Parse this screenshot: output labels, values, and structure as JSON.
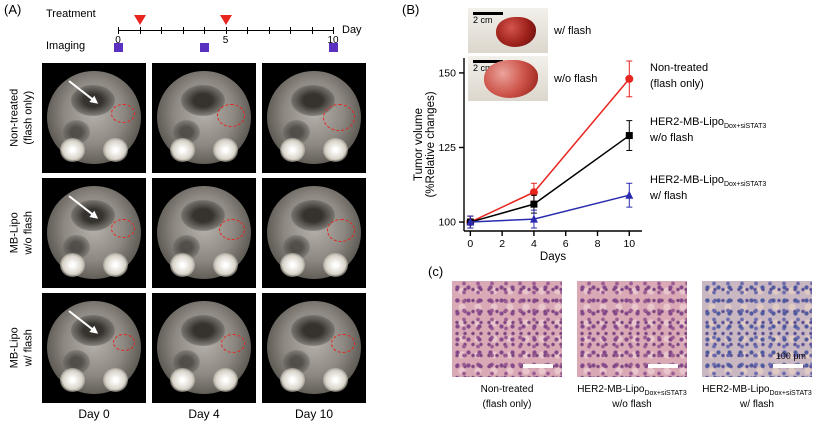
{
  "figure": {
    "panelA_tag": "(A)",
    "panelB_tag": "(B)",
    "panelC_tag": "(c)"
  },
  "panelA": {
    "timeline": {
      "treatment_label": "Treatment",
      "imaging_label": "Imaging",
      "day_axis_label": "Day",
      "axis_ticks": [
        {
          "day": 0,
          "label": "0"
        },
        {
          "day": 5,
          "label": "5"
        },
        {
          "day": 10,
          "label": "10"
        }
      ],
      "treatment_days": [
        1,
        5
      ],
      "imaging_days": [
        0,
        4,
        10
      ],
      "treatment_marker_color": "#e8251f",
      "imaging_marker_color": "#5a30c0"
    },
    "roi_color": "#e8251f",
    "rows": [
      {
        "line1": "Non-treated",
        "line2": "(flash only)"
      },
      {
        "line1": "MB-Lipo",
        "line2": "w/o flash"
      },
      {
        "line1": "MB-Lipo",
        "line2": "w/ flash"
      }
    ],
    "columns": [
      "Day 0",
      "Day 4",
      "Day 10"
    ]
  },
  "panelB": {
    "inset_photos": [
      {
        "scalebar": "2 cm",
        "label": "w/ flash"
      },
      {
        "scalebar": "2 cm",
        "label": "w/o flash"
      }
    ],
    "legend": [
      {
        "prefix": "Non-treated",
        "sub": "",
        "suffix": "(flash only)"
      },
      {
        "prefix": "HER2-MB-Lipo",
        "sub": "Dox+siSTAT3",
        "suffix": "w/o flash"
      },
      {
        "prefix": "HER2-MB-Lipo",
        "sub": "Dox+siSTAT3",
        "suffix": "w/ flash"
      }
    ]
  },
  "chart_data": {
    "type": "line",
    "x": [
      0,
      4,
      10
    ],
    "series": [
      {
        "name": "Non-treated (flash only)",
        "marker": "circle",
        "color": "#e8251f",
        "values": [
          100,
          110,
          148
        ],
        "errors": [
          2,
          3,
          6
        ]
      },
      {
        "name": "HER2-MB-Lipo Dox+siSTAT3 w/o flash",
        "marker": "square",
        "color": "#000000",
        "values": [
          100,
          106,
          129
        ],
        "errors": [
          2,
          3,
          5
        ]
      },
      {
        "name": "HER2-MB-Lipo Dox+siSTAT3 w/ flash",
        "marker": "triangle",
        "color": "#2a2ab0",
        "values": [
          100,
          101,
          109
        ],
        "errors": [
          2,
          3,
          4
        ]
      }
    ],
    "xlabel": "Days",
    "ylabel_line1": "Tumor volume",
    "ylabel_line2": "(%Relative changes)",
    "xticks": [
      0,
      2,
      4,
      6,
      8,
      10
    ],
    "yticks": [
      100,
      125,
      150
    ],
    "xlim": [
      -0.4,
      10.8
    ],
    "ylim": [
      97,
      155
    ],
    "legend_position": "right",
    "grid": false
  },
  "panelC": {
    "scalebar_label": "100 μm",
    "images": [
      {
        "prefix": "Non-treated",
        "sub": "",
        "suffix": "(flash only)",
        "stain": "pink"
      },
      {
        "prefix": "HER2-MB-Lipo",
        "sub": "Dox+siSTAT3",
        "suffix": "w/o flash",
        "stain": "pink"
      },
      {
        "prefix": "HER2-MB-Lipo",
        "sub": "Dox+siSTAT3",
        "suffix": "w/ flash",
        "stain": "blue"
      }
    ]
  }
}
